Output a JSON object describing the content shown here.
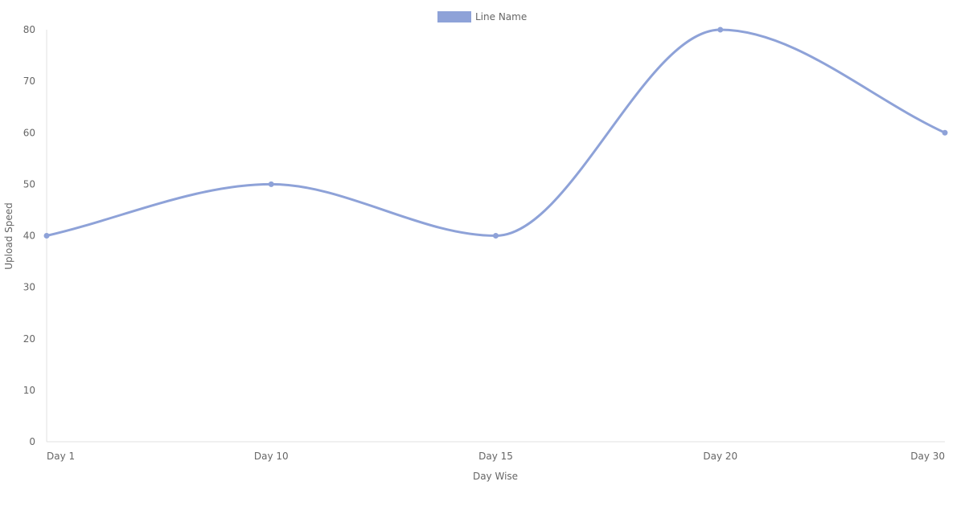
{
  "chart_data": {
    "type": "line",
    "categories": [
      "Day 1",
      "Day 10",
      "Day 15",
      "Day 20",
      "Day 30"
    ],
    "series": [
      {
        "name": "Line Name",
        "values": [
          40,
          50,
          40,
          80,
          60
        ],
        "color": "#8ea2d8"
      }
    ],
    "xlabel": "Day Wise",
    "ylabel": "Upload Speed",
    "ylim": [
      0,
      80
    ],
    "yticks": [
      0,
      10,
      20,
      30,
      40,
      50,
      60,
      70,
      80
    ],
    "grid": false,
    "smooth": true,
    "legend_position": "top-center"
  }
}
